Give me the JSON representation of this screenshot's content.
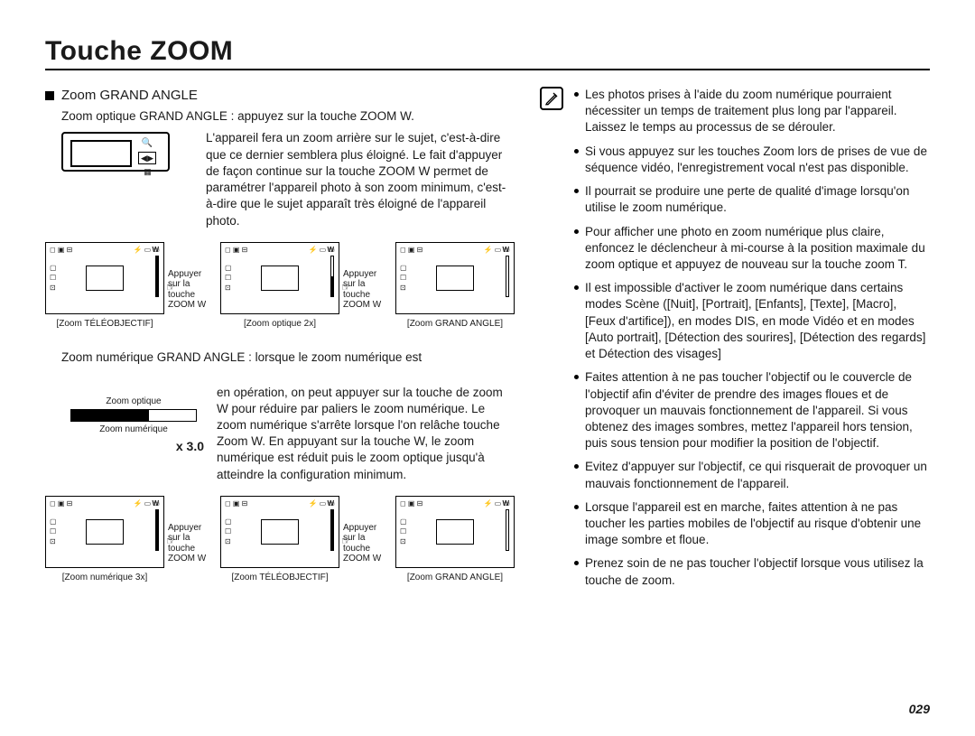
{
  "page": {
    "title": "Touche ZOOM",
    "number": "029"
  },
  "left": {
    "section_heading": "Zoom GRAND ANGLE",
    "optical_lead": "Zoom optique GRAND ANGLE : appuyez sur la touche ZOOM W.",
    "optical_para": "L'appareil fera un zoom arrière sur le sujet, c'est-à-dire que ce dernier semblera plus éloigné. Le fait d'appuyer de façon continue sur la touche ZOOM W permet de paramétrer l'appareil photo à son zoom minimum, c'est-à-dire que le sujet apparaît très éloigné de l'appareil photo.",
    "arrow_labels": {
      "line1": "Appuyer",
      "line2": "sur la touche",
      "line3": "ZOOM W"
    },
    "optical_thumbs": [
      {
        "caption": "[Zoom TÉLÉOBJECTIF]",
        "bar_fill_pct": 100,
        "has_digital_seg": false
      },
      {
        "caption": "[Zoom optique 2x]",
        "bar_fill_pct": 50,
        "has_digital_seg": false
      },
      {
        "caption": "[Zoom GRAND ANGLE]",
        "bar_fill_pct": 0,
        "has_digital_seg": false
      }
    ],
    "digital_lead": "Zoom numérique GRAND ANGLE : lorsque le zoom numérique est",
    "digital_para": "en opération, on peut appuyer sur la touche de zoom W pour réduire par paliers le zoom numérique. Le zoom numérique s'arrête lorsque l'on relâche touche Zoom W. En appuyant sur la touche W, le zoom numérique est réduit puis le zoom optique jusqu'à atteindre la configuration minimum.",
    "zoom_diagram": {
      "top_label": "Zoom optique",
      "bottom_label": "Zoom numérique",
      "digital_fill_pct": 62,
      "x_label": "x 3.0"
    },
    "digital_thumbs": [
      {
        "caption": "[Zoom numérique 3x]",
        "bar_fill_pct": 100,
        "has_digital_seg": true,
        "seg_pct": 60
      },
      {
        "caption": "[Zoom TÉLÉOBJECTIF]",
        "bar_fill_pct": 100,
        "has_digital_seg": false
      },
      {
        "caption": "[Zoom GRAND ANGLE]",
        "bar_fill_pct": 0,
        "has_digital_seg": false
      }
    ]
  },
  "right": {
    "bullets": [
      "Les photos prises à l'aide du zoom numérique pourraient nécessiter un temps de traitement plus long par l'appareil. Laissez le temps au processus de se dérouler.",
      "Si vous appuyez sur les touches Zoom lors de prises de vue de séquence vidéo, l'enregistrement vocal n'est pas disponible.",
      "Il pourrait se produire une perte de qualité d'image lorsqu'on utilise le zoom numérique.",
      "Pour afficher une photo en zoom numérique plus claire, enfoncez le déclencheur à mi-course à la position maximale du zoom optique et appuyez de nouveau sur la touche zoom T.",
      "Il est impossible d'activer le zoom numérique dans certains modes Scène ([Nuit], [Portrait], [Enfants], [Texte], [Macro], [Feux d'artifice]), en modes DIS, en mode Vidéo et en modes [Auto portrait], [Détection des sourires], [Détection des regards] et Détection des visages]",
      "Faites attention à ne pas toucher l'objectif ou le couvercle de l'objectif afin d'éviter de prendre des images floues et de provoquer un mauvais fonctionnement de l'appareil. Si vous obtenez des images sombres, mettez l'appareil hors tension, puis sous tension pour modifier la position de l'objectif.",
      "Evitez d'appuyer sur l'objectif, ce qui risquerait de provoquer un mauvais fonctionnement de l'appareil.",
      "Lorsque l'appareil est en marche, faites attention à ne pas toucher les parties mobiles de l'objectif au risque d'obtenir une image sombre et floue.",
      "Prenez soin de ne pas toucher l'objectif lorsque vous utilisez la touche de zoom."
    ]
  },
  "thumb_overlay": {
    "zoom_mark": "W",
    "status_left": "◻ ▣ ⊟",
    "status_right": "⚡ ▭ ▭",
    "side1": "▢",
    "side2": "☐",
    "side3": "⊡"
  },
  "colors": {
    "text": "#1a1a1a",
    "rule": "#000000",
    "bg": "#ffffff",
    "seg": "#888888"
  }
}
